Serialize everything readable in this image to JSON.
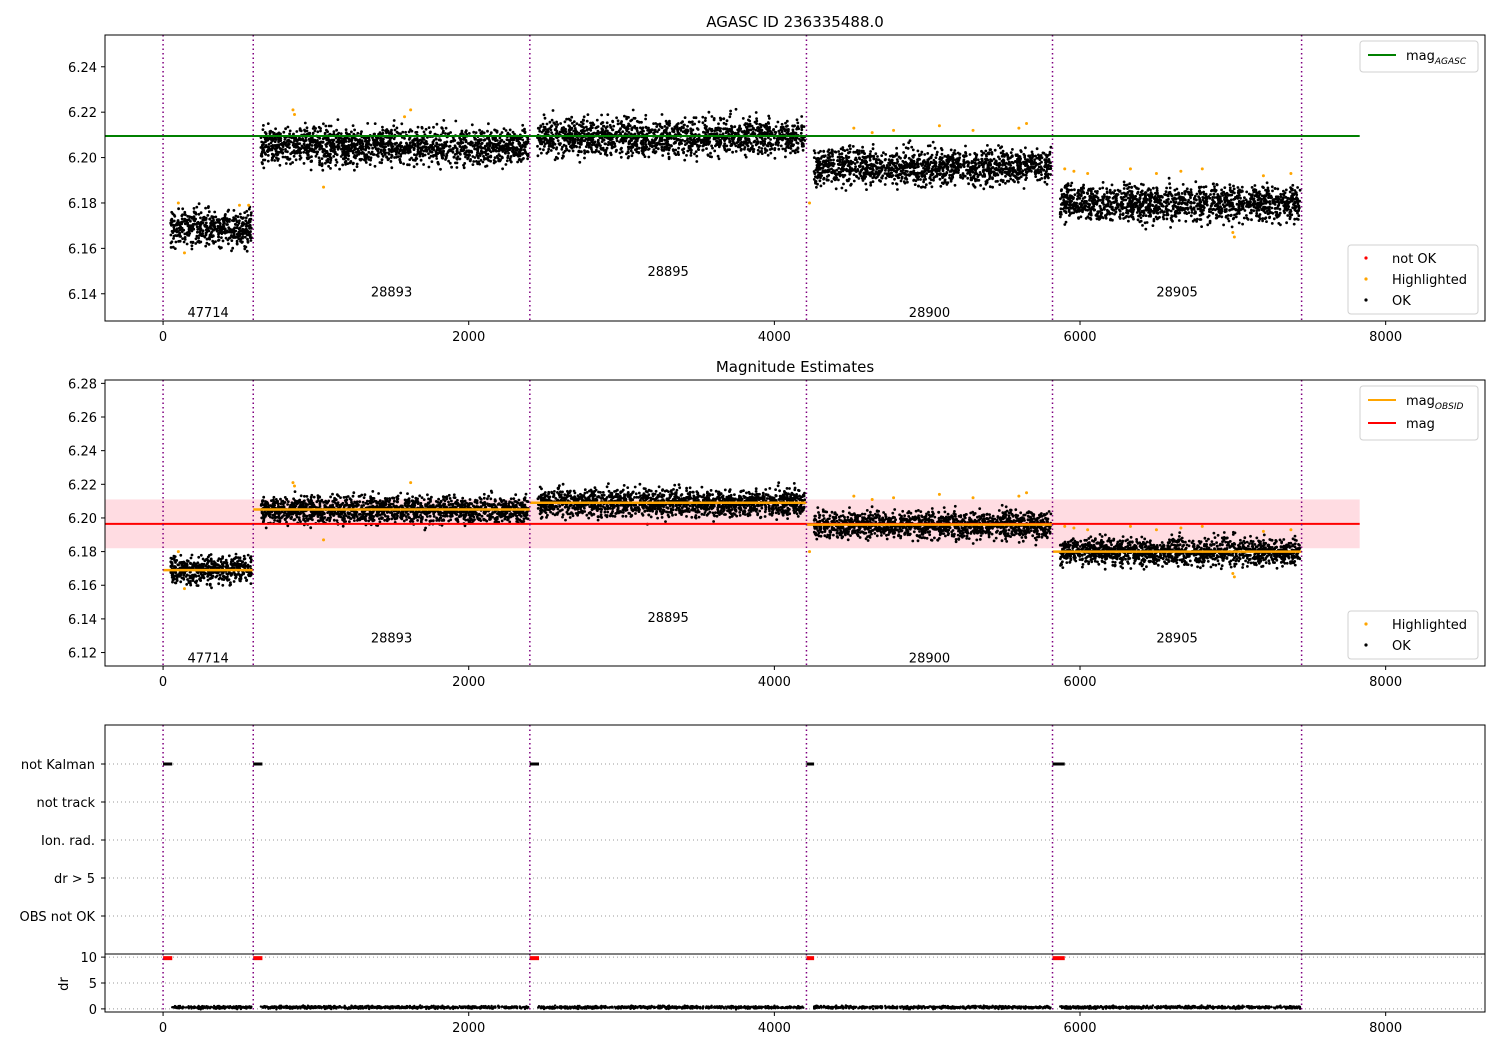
{
  "chart_data": [
    {
      "type": "scatter",
      "title": "AGASC ID 236335488.0",
      "xlabel": "",
      "ylabel": "",
      "xlim": [
        -380,
        8650
      ],
      "ylim": [
        6.128,
        6.254
      ],
      "xticks": [
        0,
        2000,
        4000,
        6000,
        8000
      ],
      "yticks": [
        6.14,
        6.16,
        6.18,
        6.2,
        6.22,
        6.24
      ],
      "x_tick_labels": [
        "0",
        "2000",
        "4000",
        "6000",
        "8000"
      ],
      "y_tick_labels": [
        "6.14",
        "6.16",
        "6.18",
        "6.20",
        "6.22",
        "6.24"
      ],
      "obsid_boundaries": [
        0,
        590,
        2400,
        4210,
        5820,
        7450
      ],
      "obsid_labels": [
        {
          "text": "47714",
          "x": 295,
          "y": 6.132
        },
        {
          "text": "28893",
          "x": 1495,
          "y": 6.141
        },
        {
          "text": "28895",
          "x": 3305,
          "y": 6.15
        },
        {
          "text": "28900",
          "x": 5015,
          "y": 6.132
        },
        {
          "text": "28905",
          "x": 6635,
          "y": 6.141
        }
      ],
      "segments": [
        {
          "obsid": "47714",
          "x_start": 50,
          "x_end": 580,
          "mean": 6.169,
          "spread": 0.004
        },
        {
          "obsid": "28893",
          "x_start": 640,
          "x_end": 2390,
          "mean": 6.205,
          "spread": 0.004
        },
        {
          "obsid": "28895",
          "x_start": 2450,
          "x_end": 4200,
          "mean": 6.209,
          "spread": 0.004
        },
        {
          "obsid": "28900",
          "x_start": 4260,
          "x_end": 5810,
          "mean": 6.196,
          "spread": 0.004
        },
        {
          "obsid": "28905",
          "x_start": 5870,
          "x_end": 7440,
          "mean": 6.18,
          "spread": 0.004
        }
      ],
      "highlighted_points": [
        [
          100,
          6.18
        ],
        [
          140,
          6.158
        ],
        [
          500,
          6.179
        ],
        [
          560,
          6.179
        ],
        [
          850,
          6.221
        ],
        [
          860,
          6.219
        ],
        [
          1050,
          6.187
        ],
        [
          1620,
          6.221
        ],
        [
          1580,
          6.218
        ],
        [
          4230,
          6.18
        ],
        [
          4520,
          6.213
        ],
        [
          4640,
          6.211
        ],
        [
          4780,
          6.212
        ],
        [
          5080,
          6.214
        ],
        [
          5300,
          6.212
        ],
        [
          5600,
          6.213
        ],
        [
          5650,
          6.215
        ],
        [
          5900,
          6.195
        ],
        [
          5960,
          6.194
        ],
        [
          6050,
          6.193
        ],
        [
          6330,
          6.195
        ],
        [
          6500,
          6.193
        ],
        [
          6660,
          6.194
        ],
        [
          6800,
          6.195
        ],
        [
          7000,
          6.167
        ],
        [
          7010,
          6.165
        ],
        [
          7200,
          6.192
        ],
        [
          7380,
          6.193
        ]
      ],
      "series": [
        {
          "name": "mag_AGASC",
          "type": "line",
          "color": "#008000",
          "x": [
            -380,
            7830
          ],
          "y": [
            6.2095,
            6.2095
          ]
        }
      ],
      "legend_lines": [
        {
          "label": "mag",
          "sub": "AGASC",
          "color": "#008000"
        }
      ],
      "legend_points": [
        {
          "label": "not OK",
          "color": "#ff0000"
        },
        {
          "label": "Highlighted",
          "color": "#ffa500"
        },
        {
          "label": "OK",
          "color": "#000000"
        }
      ],
      "legend_lines_position": "upper right",
      "legend_points_position": "lower right",
      "grid": false
    },
    {
      "type": "scatter",
      "title": "Magnitude Estimates",
      "xlabel": "",
      "ylabel": "",
      "xlim": [
        -380,
        8650
      ],
      "ylim": [
        6.112,
        6.282
      ],
      "xticks": [
        0,
        2000,
        4000,
        6000,
        8000
      ],
      "yticks": [
        6.12,
        6.14,
        6.16,
        6.18,
        6.2,
        6.22,
        6.24,
        6.26,
        6.28
      ],
      "x_tick_labels": [
        "0",
        "2000",
        "4000",
        "6000",
        "8000"
      ],
      "y_tick_labels": [
        "6.12",
        "6.14",
        "6.16",
        "6.18",
        "6.20",
        "6.22",
        "6.24",
        "6.26",
        "6.28"
      ],
      "obsid_boundaries": [
        0,
        590,
        2400,
        4210,
        5820,
        7450
      ],
      "obsid_labels": [
        {
          "text": "47714",
          "x": 295,
          "y": 6.117
        },
        {
          "text": "28893",
          "x": 1495,
          "y": 6.129
        },
        {
          "text": "28895",
          "x": 3305,
          "y": 6.141
        },
        {
          "text": "28900",
          "x": 5015,
          "y": 6.117
        },
        {
          "text": "28905",
          "x": 6635,
          "y": 6.129
        }
      ],
      "segments": [
        {
          "obsid": "47714",
          "x_start": 50,
          "x_end": 580,
          "mean": 6.169,
          "spread": 0.004
        },
        {
          "obsid": "28893",
          "x_start": 640,
          "x_end": 2390,
          "mean": 6.205,
          "spread": 0.004
        },
        {
          "obsid": "28895",
          "x_start": 2450,
          "x_end": 4200,
          "mean": 6.209,
          "spread": 0.004
        },
        {
          "obsid": "28900",
          "x_start": 4260,
          "x_end": 5810,
          "mean": 6.196,
          "spread": 0.004
        },
        {
          "obsid": "28905",
          "x_start": 5870,
          "x_end": 7440,
          "mean": 6.18,
          "spread": 0.004
        }
      ],
      "highlighted_points": [
        [
          100,
          6.18
        ],
        [
          140,
          6.158
        ],
        [
          850,
          6.221
        ],
        [
          860,
          6.219
        ],
        [
          1050,
          6.187
        ],
        [
          1620,
          6.221
        ],
        [
          4230,
          6.18
        ],
        [
          4520,
          6.213
        ],
        [
          4640,
          6.211
        ],
        [
          4780,
          6.212
        ],
        [
          5080,
          6.214
        ],
        [
          5300,
          6.212
        ],
        [
          5600,
          6.213
        ],
        [
          5650,
          6.215
        ],
        [
          5900,
          6.195
        ],
        [
          5960,
          6.194
        ],
        [
          6050,
          6.193
        ],
        [
          6330,
          6.195
        ],
        [
          6500,
          6.193
        ],
        [
          6660,
          6.194
        ],
        [
          6800,
          6.195
        ],
        [
          7000,
          6.167
        ],
        [
          7010,
          6.165
        ],
        [
          7200,
          6.192
        ],
        [
          7380,
          6.193
        ]
      ],
      "band": {
        "color": "#ffc0cb",
        "y_low": 6.182,
        "y_high": 6.211,
        "x_start": -380,
        "x_end": 7830
      },
      "series": [
        {
          "name": "mag",
          "type": "line",
          "color": "#ff0000",
          "x": [
            -380,
            7830
          ],
          "y": [
            6.1965,
            6.1965
          ]
        },
        {
          "name": "mag_OBSID",
          "type": "step",
          "color": "#ffa500",
          "x": [
            [
              0,
              590
            ],
            [
              590,
              2400
            ],
            [
              2400,
              4210
            ],
            [
              4210,
              5820
            ],
            [
              5820,
              7450
            ]
          ],
          "y": [
            6.169,
            6.205,
            6.209,
            6.196,
            6.18
          ]
        }
      ],
      "legend_lines": [
        {
          "label": "mag",
          "sub": "OBSID",
          "color": "#ffa500"
        },
        {
          "label": "mag",
          "sub": "",
          "color": "#ff0000"
        }
      ],
      "legend_points": [
        {
          "label": "Highlighted",
          "color": "#ffa500"
        },
        {
          "label": "OK",
          "color": "#000000"
        }
      ],
      "legend_lines_position": "upper right",
      "legend_points_position": "lower right",
      "grid": false
    },
    {
      "type": "scatter",
      "title": "",
      "xlim": [
        -380,
        8650
      ],
      "xticks": [
        0,
        2000,
        4000,
        6000,
        8000
      ],
      "x_tick_labels": [
        "0",
        "2000",
        "4000",
        "6000",
        "8000"
      ],
      "obsid_boundaries": [
        0,
        590,
        2400,
        4210,
        5820,
        7450
      ],
      "flag_categories": [
        "not Kalman",
        "not track",
        "Ion. rad.",
        "dr > 5",
        "OBS not OK"
      ],
      "flag_marks": [
        {
          "flag": "not Kalman",
          "x_start": 0,
          "x_end": 60
        },
        {
          "flag": "not Kalman",
          "x_start": 590,
          "x_end": 650
        },
        {
          "flag": "not Kalman",
          "x_start": 2400,
          "x_end": 2460
        },
        {
          "flag": "not Kalman",
          "x_start": 4210,
          "x_end": 4260
        },
        {
          "flag": "not Kalman",
          "x_start": 5820,
          "x_end": 5900
        }
      ],
      "grid": "horizontal dotted"
    },
    {
      "type": "scatter",
      "title": "",
      "ylabel": "dr",
      "xlim": [
        -380,
        8650
      ],
      "ylim": [
        -0.6,
        10.6
      ],
      "xticks": [
        0,
        2000,
        4000,
        6000,
        8000
      ],
      "yticks": [
        0,
        5,
        10
      ],
      "x_tick_labels": [
        "0",
        "2000",
        "4000",
        "6000",
        "8000"
      ],
      "y_tick_labels": [
        "0",
        "5",
        "10"
      ],
      "obsid_boundaries": [
        0,
        590,
        2400,
        4210,
        5820,
        7450
      ],
      "red_segments": [
        {
          "x_start": 0,
          "x_end": 60,
          "y": 9.8
        },
        {
          "x_start": 590,
          "x_end": 650,
          "y": 9.8
        },
        {
          "x_start": 2400,
          "x_end": 2460,
          "y": 9.8
        },
        {
          "x_start": 4210,
          "x_end": 4260,
          "y": 9.8
        },
        {
          "x_start": 5820,
          "x_end": 5900,
          "y": 9.8
        }
      ],
      "dr_segments": [
        {
          "x_start": 60,
          "x_end": 580,
          "y": 0.3
        },
        {
          "x_start": 640,
          "x_end": 2390,
          "y": 0.3
        },
        {
          "x_start": 2450,
          "x_end": 4200,
          "y": 0.3
        },
        {
          "x_start": 4260,
          "x_end": 5810,
          "y": 0.3
        },
        {
          "x_start": 5870,
          "x_end": 7440,
          "y": 0.3
        }
      ],
      "grid": "horizontal dotted"
    }
  ]
}
